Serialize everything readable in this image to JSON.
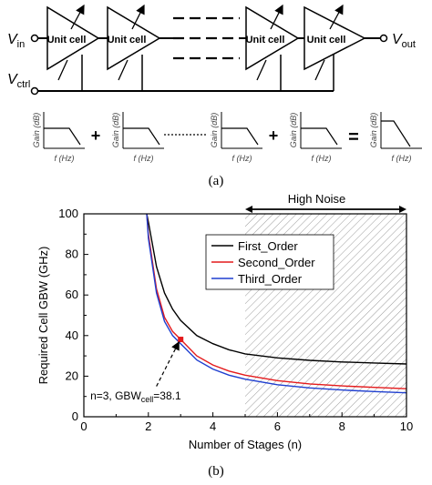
{
  "panel_a": {
    "input_label": "V",
    "input_sub": "in",
    "ctrl_label": "V",
    "ctrl_sub": "ctrl",
    "output_label": "V",
    "output_sub": "out",
    "cell_labels": [
      "Unit cell",
      "Unit cell",
      "Unit cell",
      "Unit cell"
    ],
    "plot_ylabel": "Gain (dB)",
    "plot_xlabel": "f (Hz)",
    "plus": "+",
    "equals": "=",
    "caption": "(a)"
  },
  "panel_b": {
    "caption": "(b)",
    "high_noise_label": "High Noise",
    "annotation_prefix": "n=3, GBW",
    "annotation_sub": "cell",
    "annotation_value": "=38.1"
  },
  "chart_data": {
    "type": "line",
    "xlabel": "Number of Stages (n)",
    "ylabel": "Required Cell GBW (GHz)",
    "xlim": [
      0,
      10
    ],
    "ylim": [
      0,
      100
    ],
    "xticks": [
      0,
      2,
      4,
      6,
      8,
      10
    ],
    "yticks": [
      0,
      20,
      40,
      60,
      80,
      100
    ],
    "grid": false,
    "legend_position": "top-right",
    "shaded_region": {
      "x_from": 5,
      "x_to": 10,
      "label": "High Noise"
    },
    "series": [
      {
        "name": "First_Order",
        "color": "#000000",
        "x": [
          1.95,
          2.0,
          2.25,
          2.5,
          2.75,
          3.0,
          3.5,
          4.0,
          4.5,
          5.0,
          6.0,
          7.0,
          8.0,
          9.0,
          10.0
        ],
        "y": [
          100,
          96,
          74,
          61,
          53,
          47.5,
          40,
          36,
          33,
          31,
          29,
          27.8,
          27,
          26.5,
          26
        ]
      },
      {
        "name": "Second_Order",
        "color": "#e41a1c",
        "x": [
          1.95,
          2.0,
          2.25,
          2.5,
          2.75,
          3.0,
          3.5,
          4.0,
          4.5,
          5.0,
          6.0,
          7.0,
          8.0,
          9.0,
          10.0
        ],
        "y": [
          100,
          90,
          63,
          49,
          42,
          38.1,
          30,
          25.5,
          22.5,
          20.5,
          17.8,
          16.2,
          15.2,
          14.5,
          13.8
        ]
      },
      {
        "name": "Third_Order",
        "color": "#1f3fd0",
        "x": [
          1.95,
          2.0,
          2.25,
          2.5,
          2.75,
          3.0,
          3.5,
          4.0,
          4.5,
          5.0,
          6.0,
          7.0,
          8.0,
          9.0,
          10.0
        ],
        "y": [
          100,
          88,
          61,
          47,
          40,
          36,
          28,
          23.5,
          20.5,
          18.5,
          15.8,
          14.2,
          13.2,
          12.4,
          11.8
        ]
      }
    ],
    "highlight_point": {
      "x": 3,
      "y": 38.1,
      "color": "#e41a1c"
    }
  }
}
